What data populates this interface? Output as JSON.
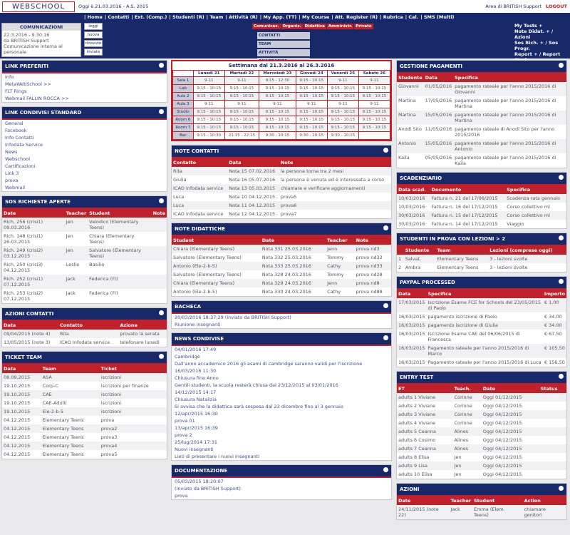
{
  "header": {
    "logo": "WEBSCHOOL",
    "date": "Oggi è 21.03.2016 - A.S. 2015",
    "area": "Area di BRITISH Support",
    "logout": "LOGOUT",
    "menu": [
      "Home",
      "Contatti",
      "Ext. (Comp.)",
      "Studenti (R)",
      "Team",
      "Attività (R)",
      "My App. (TT)",
      "My Course",
      "Att. Register (R)",
      "Rubrica",
      "Cal.",
      "SMS (Multi)"
    ],
    "comm_title": "COMUNICAZIONI",
    "comm_rows": [
      "22.3.2016 - 9.30.16",
      "da BRITISH Support",
      "Comunicazione interna al personale"
    ],
    "buttons": [
      "leggi",
      "nuova",
      "ricevute",
      "inviate"
    ],
    "tabs": [
      "Comunicaz.",
      "Organiz.",
      "Didattica",
      "Amministr.",
      "Privato"
    ],
    "cells": [
      "CONTATTI",
      "TEAM",
      "ATTIVITÀ",
      "ANAGRAFICA ATTIVITA'"
    ],
    "my_links": [
      "My Tests +",
      "Note Didat. + / Azioni",
      "Sos Rich. + / Sos Progr.",
      "Report + / Report Stud"
    ]
  },
  "left": [
    {
      "title": "LINK PREFERITI",
      "items": [
        "Info",
        "MetaWebSchool >>",
        "FLT Rings",
        "Webmail FALLIN ROCCA >>"
      ]
    },
    {
      "title": "LINK CONDIVISI STANDARD",
      "items": [
        "General",
        "Facebook",
        "Info Contatti",
        "Infodata Service",
        "News",
        "Webschool",
        "Certificazioni",
        "Link 3",
        "prova",
        "Webmail"
      ]
    },
    {
      "title": "SOS RICHIESTE APERTE",
      "headers": [
        "Date",
        "Teacher",
        "Student",
        "Note"
      ],
      "rows": [
        [
          "Rich. 256 (crisi1) 09.03.2016",
          "Jen",
          "Valodico (Elementary Teens)",
          ""
        ],
        [
          "Rich. 148 (crisi1) 26.03.2015",
          "Jen",
          "Chiara (Elementary Teens)",
          ""
        ],
        [
          "Rich. 249 (crisi2) 03.12.2015",
          "Jen",
          "Salvatore (Elementary Teens)",
          ""
        ],
        [
          "Rich. 250 (crisi3) 04.12.2015",
          "Leslie",
          "Basilio",
          ""
        ],
        [
          "Rich. 252 (crisi1) 07.12.2015",
          "Jack",
          "Federica (FI)",
          ""
        ],
        [
          "Rich. 253 (crisi2) 07.12.2015",
          "Jack",
          "Federica (FI)",
          ""
        ]
      ]
    },
    {
      "title": "AZIONI CONTATTI",
      "headers": [
        "Data",
        "Contatto",
        "Azione"
      ],
      "rows": [
        [
          "09/04/2015 (note 4)",
          "Rita",
          "provato la serata"
        ],
        [
          "13/05/2015 (note 3)",
          "ICAO Infodata service",
          "telefonare lunedì"
        ]
      ]
    },
    {
      "title": "TICKET TEAM",
      "headers": [
        "Data",
        "Team",
        "Ticket"
      ],
      "rows": [
        [
          "08.09.2015",
          "ASA",
          "iscrizioni"
        ],
        [
          "19.10.2015",
          "Corp-C",
          "iscrizioni per finanze"
        ],
        [
          "19.10.2015",
          "CAE",
          "iscrizioni"
        ],
        [
          "19.10.2015",
          "CAE-Adulti",
          "iscrizioni"
        ],
        [
          "19.10.2015",
          "Ele-2-b-5",
          "iscrizioni"
        ],
        [
          "04.12.2015",
          "Elementary Teens",
          "prova"
        ],
        [
          "04.12.2015",
          "Elementary Teens",
          "prova2"
        ],
        [
          "04.12.2015",
          "Elementary Teens",
          "prova3"
        ],
        [
          "04.12.2015",
          "Elementary Teens",
          "prova4"
        ],
        [
          "04.12.2015",
          "Elementary Teens",
          "prova5"
        ]
      ]
    }
  ],
  "calendar": {
    "title": "Settimana dal 21.3.2016 al 26.3.2016",
    "headers": [
      "",
      "Lunedì 21",
      "Martedì 22",
      "Mercoledì 23",
      "Giovedì 24",
      "Venerdì 25",
      "Sabato 26"
    ],
    "rows": [
      [
        "Sala 1",
        "9-11",
        "9-11",
        "9:15 - 12:30",
        "9:15 - 10:15",
        "9-11",
        "9-11"
      ],
      [
        "Lab",
        "9:15 - 10:15",
        "9:15 - 10:15",
        "9:15 - 10:15",
        "9:15 - 10:15",
        "9:15 - 10:15",
        "9:15 - 10:15"
      ],
      [
        "Aula 2",
        "9:15 - 10:15",
        "9:15 - 10:15",
        "9:15 - 10:15",
        "9:15 - 10:15",
        "9:15 - 10:15",
        "9:15 - 10:15"
      ],
      [
        "Aula 3",
        "9-11",
        "9-11",
        "9-11",
        "9-11",
        "9-11",
        "9-11"
      ],
      [
        "Studio",
        "9:15 - 10:15",
        "9:15 - 10:15",
        "9:15 - 10:15",
        "9:15 - 10:15",
        "9:15 - 10:15",
        "9:15 - 10:15"
      ],
      [
        "Room 6",
        "9:15 - 10:15",
        "9:15 - 10:15",
        "9:15 - 10:15",
        "9:15 - 10:15",
        "9:15 - 10:15",
        "9:15 - 10:15"
      ],
      [
        "Room 7",
        "9:15 - 10:15",
        "9:15 - 10:15",
        "9:15 - 10:15",
        "9:15 - 10:15",
        "9:15 - 10:15",
        "9:15 - 10:15"
      ],
      [
        "Bar",
        "9:15 - 10:30",
        "21:15 - 22:15",
        "9:30 - 10:15",
        "9:30 - 10:15",
        "9:30 - 10:15",
        ""
      ]
    ]
  },
  "middle": [
    {
      "title": "NOTE CONTATTI",
      "headers": [
        "Contatto",
        "Data",
        "Note"
      ],
      "rows": [
        [
          "Rita",
          "Nota 15 07.02.2016",
          "la persona torna tra 2 mesi"
        ],
        [
          "Giulia",
          "Nota 16 05.07.2016",
          "la persona è venuta ed è interessata a corso"
        ],
        [
          "ICAO Infodata service",
          "Nota 13 05.03.2015",
          "chiamare e verificare aggiornamenti"
        ],
        [
          "Luca",
          "Nota 10 04.12.2015",
          "prova5"
        ],
        [
          "Luca",
          "Nota 11 04.12.2015",
          "prova6"
        ],
        [
          "ICAO Infodata service",
          "Nota 12 04.12.2015",
          "prova7"
        ]
      ]
    },
    {
      "title": "NOTE DIDATTICHE",
      "headers": [
        "Student",
        "Date",
        "Teacher",
        "Note"
      ],
      "rows": [
        [
          "Chiara (Elementary Teens)",
          "Nota 331 25.03.2016",
          "Jenn",
          "prova nd3"
        ],
        [
          "Salvatore (Elementary Teens)",
          "Nota 332 25.03.2016",
          "Tommy",
          "prova nd32"
        ],
        [
          "Antonio (Ele-2-b-5)",
          "Nota 333 25.03.2016",
          "Cathy",
          "prova nd33"
        ],
        [
          "Salvatore (Elementary Teens)",
          "Nota 328 24.03.2016",
          "Tommy",
          "prova nd28"
        ],
        [
          "Chiara (Elementary Teens)",
          "Nota 329 24.03.2016",
          "Jenn",
          "prova nd8"
        ],
        [
          "Antonio (Ele-2-b-5)",
          "Nota 330 24.03.2016",
          "Cathy",
          "prova nd88"
        ]
      ]
    },
    {
      "title": "BACHECA",
      "items": [
        "20/03/2016 18:37:29 (inviato da BRITISH Support)",
        "Riunione insegnanti"
      ]
    },
    {
      "title": "NEWS CONDIVISE",
      "items": [
        "04/01/2016 17:49",
        "Cambridge",
        "Dall'anno accademico 2016 gli esami di cambridge saranno validi per l'iscrizione",
        "16/03/2016 11:30",
        "Chiusura fine Anno",
        "Gentili studenti, la scuola resterà chiusa dal 23/12/2015 al 03/01/2016",
        "14/12/2015 14:17",
        "Chiusura Natalizia",
        "Si avvisa che la didattica sarà sospesa dal 23 dicembre fino al 3 gennaio",
        "12/apr/2015 16:30",
        "prova 01",
        "13/apr/2015 16:39",
        "prova 2",
        "25/lug/2014 17:31",
        "Nuovi insegnanti",
        "Lieti di presentare i nuovi insegnanti"
      ]
    },
    {
      "title": "DOCUMENTAZIONE",
      "items": [
        "05/03/2015 18:20:07",
        "(inviato da BRITISH Support)",
        "prova"
      ]
    }
  ],
  "right": [
    {
      "title": "GESTIONE PAGAMENTI",
      "headers": [
        "Studente",
        "Data",
        "Specifica"
      ],
      "rows": [
        [
          "Giovanni",
          "01/05/2016",
          "pagamento rateale per l'anno 2015/2016 di Giovanni"
        ],
        [
          "Martina",
          "17/05/2016",
          "pagamento rateale per l'anno 2015/2016 di Martina"
        ],
        [
          "Martina",
          "15/05/2016",
          "pagamento rateale per l'anno 2015/2016 di Martina"
        ],
        [
          "Anodi Sito",
          "11/05/2016",
          "pagamento rateale di Anodi Sito per l'anno 2015/2016"
        ],
        [
          "Antonio",
          "15/05/2016",
          "pagamento rateale per l'anno 2015/2016 di Antonio"
        ],
        [
          "Kaila",
          "05/05/2016",
          "pagamento rateale per l'anno 2015/2016 di Kaila"
        ]
      ]
    },
    {
      "title": "SCADENZIARIO",
      "headers": [
        "Data scad.",
        "Documento",
        "Specifica"
      ],
      "rows": [
        [
          "10/03/2016",
          "Fattura n. 21 del 17/06/2015",
          "Scadenza rata gennaio"
        ],
        [
          "10/03/2016",
          "Fattura n. 16 del 17/12/2015",
          "Corso collettivo ml"
        ],
        [
          "30/03/2016",
          "Fattura n. 15 del 17/12/2015",
          "Corso collettivo ml"
        ],
        [
          "30/03/2016",
          "Fattura n. 14 del 17/12/2015",
          "Viaggio"
        ]
      ]
    },
    {
      "title": "STUDENTI IN PROVA CON LEZIONI > 2",
      "headers": [
        "",
        "Studente",
        "Team",
        "Lezioni (comprese oggi)"
      ],
      "rows": [
        [
          "1",
          "Salvat.",
          "Elementary Teens",
          "3 - lezioni svolte"
        ],
        [
          "2",
          "Ambra",
          "Elementary Teens",
          "3 - lezioni svolte"
        ]
      ]
    },
    {
      "title": "PAYPAL PROCESSED",
      "headers": [
        "Data",
        "Specifica",
        "Importo"
      ],
      "rows": [
        [
          "17/03/2015",
          "Iscrizione Esame FCE for Schools del 23/05/2015 di Paolo",
          "€ 1.00"
        ],
        [
          "16/03/2015",
          "pagamento iscrizione di Paolo",
          "€ 34.00"
        ],
        [
          "16/03/2015",
          "pagamento iscrizione di Giulia",
          "€ 34.00"
        ],
        [
          "16/03/2015",
          "Iscrizione Esame CAE del 06/06/2015 di Francesca",
          "€ 67.50"
        ],
        [
          "16/03/2015",
          "Pagamento rateale per l'anno 2015/2016 di Marco",
          "€ 105.50"
        ],
        [
          "16/03/2015",
          "Pagamento rateale per l'anno 2015/2016 di Luca",
          "€ 156.50"
        ]
      ]
    },
    {
      "title": "ENTRY TEST",
      "headers": [
        "ET",
        "Teach.",
        "Date",
        "Status"
      ],
      "rows": [
        [
          "adults 1 Viviane",
          "Corinne",
          "Oggi 01/12/2015",
          ""
        ],
        [
          "adults 2 Viviane",
          "Corinne",
          "Oggi 04/12/2015",
          ""
        ],
        [
          "adults 3 Viviane",
          "Corinne",
          "Oggi 04/12/2015",
          ""
        ],
        [
          "adults 4 Viviane",
          "Corinne",
          "Oggi 04/12/2015",
          ""
        ],
        [
          "adults 5 Ceanna",
          "Alines",
          "Oggi 04/12/2015",
          ""
        ],
        [
          "adults 6 Cosimo",
          "Alines",
          "Oggi 04/12/2015",
          ""
        ],
        [
          "adults 7 Ceanna",
          "Alines",
          "Oggi 04/12/2015",
          ""
        ],
        [
          "adults 8 Elisa",
          "Jen",
          "Oggi 04/12/2015",
          ""
        ],
        [
          "adults 9 Lisa",
          "Jen",
          "Oggi 04/12/2015",
          ""
        ],
        [
          "adults 10 Elisa",
          "Jen",
          "Oggi 04/12/2015",
          ""
        ]
      ]
    },
    {
      "title": "AZIONI",
      "headers": [
        "Date",
        "Teacher",
        "Student",
        "Action"
      ],
      "rows": [
        [
          "24/11/2015 (note 22)",
          "Jack",
          "Emma (Elem. Teens)",
          "chiamare genitori"
        ]
      ]
    }
  ]
}
